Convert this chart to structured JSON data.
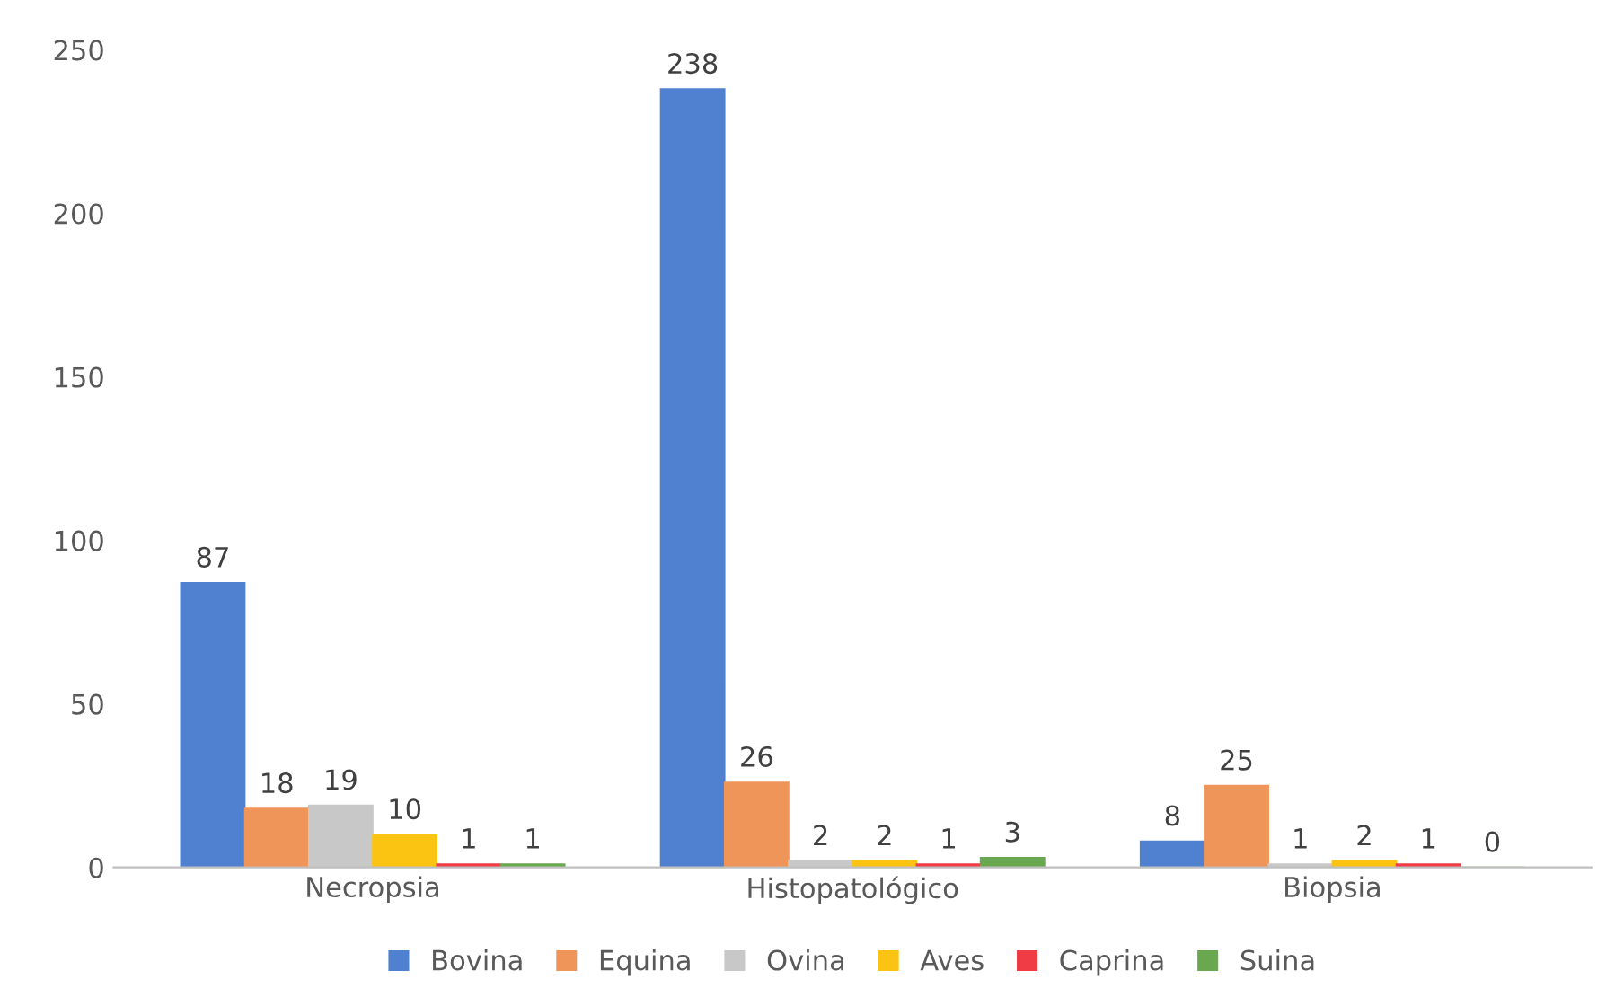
{
  "chart_data": {
    "type": "bar",
    "categories": [
      "Necropsia",
      "Histopatológico",
      "Biopsia"
    ],
    "series": [
      {
        "name": "Bovina",
        "color": "#4f81d0",
        "values": [
          87,
          238,
          8
        ]
      },
      {
        "name": "Equina",
        "color": "#f0955a",
        "values": [
          18,
          26,
          25
        ]
      },
      {
        "name": "Ovina",
        "color": "#c8c8c8",
        "values": [
          19,
          2,
          1
        ]
      },
      {
        "name": "Aves",
        "color": "#fcc412",
        "values": [
          10,
          2,
          2
        ]
      },
      {
        "name": "Caprina",
        "color": "#f03c44",
        "values": [
          1,
          1,
          1
        ]
      },
      {
        "name": "Suina",
        "color": "#6aa84f",
        "values": [
          1,
          3,
          0
        ]
      }
    ],
    "ylim": [
      0,
      250
    ],
    "yticks": [
      0,
      50,
      100,
      150,
      200,
      250
    ],
    "grid": false,
    "legend": "bottom",
    "data_labels": true
  }
}
